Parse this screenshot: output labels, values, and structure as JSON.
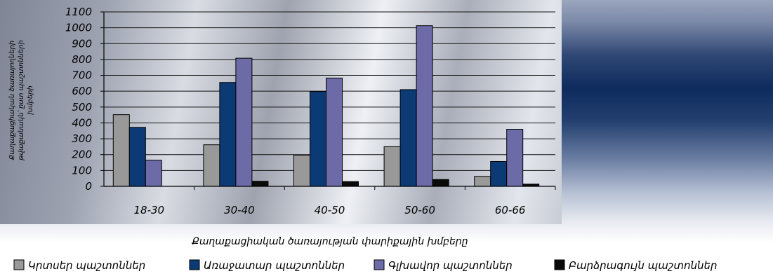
{
  "chart_data": {
    "type": "bar",
    "categories": [
      "18-30",
      "30-40",
      "40-50",
      "50-60",
      "60-66"
    ],
    "series": [
      {
        "name": "Կրտսեր պաշտոններ",
        "color": "#999999",
        "values": [
          452,
          262,
          197,
          250,
          63
        ]
      },
      {
        "name": "Առաջատար պաշտոններ",
        "color": "#0c3a75",
        "values": [
          372,
          655,
          598,
          610,
          157
        ]
      },
      {
        "name": "Գլխավոր պաշտոններ",
        "color": "#6c6ba8",
        "values": [
          165,
          808,
          683,
          1013,
          360
        ]
      },
      {
        "name": "Բարձրագույն պաշտոններ",
        "color": "#0a0a0a",
        "values": [
          0,
          32,
          30,
          43,
          14
        ]
      }
    ],
    "yticks": [
      "0",
      "100",
      "200",
      "300",
      "400",
      "500",
      "600",
      "700",
      "800",
      "900",
      "1000",
      "1100"
    ],
    "ylim": [
      0,
      1100
    ],
    "xlabel": "Քաղաքացիական ծառայության փարիքային խմբերը",
    "ylabel_lines": [
      "Քաղաքացիական ծառայողների",
      "թվաքանակն՝ ըստ պաշտոնների",
      "խմբերի"
    ],
    "grid": true,
    "legend_position": "bottom"
  }
}
